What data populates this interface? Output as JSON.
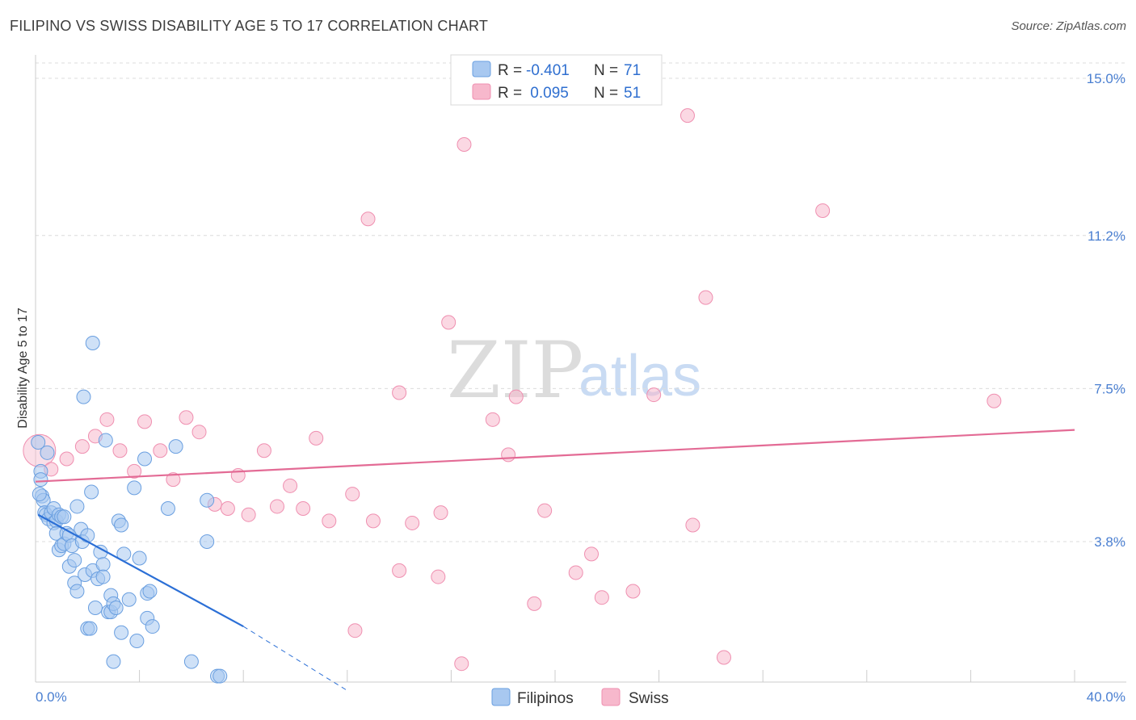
{
  "title": "FILIPINO VS SWISS DISABILITY AGE 5 TO 17 CORRELATION CHART",
  "source": "Source: ZipAtlas.com",
  "chart_data": {
    "type": "scatter",
    "title": "FILIPINO VS SWISS DISABILITY AGE 5 TO 17 CORRELATION CHART",
    "xlabel": "",
    "ylabel": "Disability Age 5 to 17",
    "xlim": [
      0,
      40
    ],
    "ylim": [
      0,
      15.5
    ],
    "x_tick_labels": [
      "0.0%",
      "40.0%"
    ],
    "y_ticks": [
      {
        "value": 15.0,
        "label": "15.0%"
      },
      {
        "value": 11.2,
        "label": "11.2%"
      },
      {
        "value": 7.5,
        "label": "7.5%"
      },
      {
        "value": 3.8,
        "label": "3.8%"
      }
    ],
    "watermark": {
      "zip": "ZIP",
      "atlas": "atlas"
    },
    "legend": [
      {
        "series": "Filipinos",
        "r_label": "R = ",
        "r_value": "-0.401",
        "n_label": "N = ",
        "n_value": "71",
        "color": "#a8c8f0"
      },
      {
        "series": "Swiss",
        "r_label": "R = ",
        "r_value": " 0.095",
        "n_label": "N = ",
        "n_value": "51",
        "color": "#f7b8cc"
      }
    ],
    "series": [
      {
        "name": "Filipinos",
        "color": "#a8c8f0",
        "stroke": "#6a9fe0",
        "trend": {
          "x0": 0.1,
          "y0": 4.45,
          "x1": 8.0,
          "y1": 1.75,
          "dash_x1": 12.0,
          "dash_y1": 0.2,
          "color": "#2b6fd6"
        },
        "points": [
          [
            0.1,
            6.2
          ],
          [
            0.2,
            5.5
          ],
          [
            0.2,
            5.3
          ],
          [
            0.25,
            4.9
          ],
          [
            0.3,
            4.8
          ],
          [
            0.35,
            4.5
          ],
          [
            0.4,
            4.45
          ],
          [
            0.5,
            4.35
          ],
          [
            0.6,
            4.5
          ],
          [
            0.7,
            4.6
          ],
          [
            0.7,
            4.25
          ],
          [
            0.8,
            4.3
          ],
          [
            0.8,
            4.0
          ],
          [
            0.9,
            3.6
          ],
          [
            0.9,
            4.45
          ],
          [
            1.0,
            4.4
          ],
          [
            1.0,
            3.7
          ],
          [
            1.1,
            3.75
          ],
          [
            1.1,
            4.4
          ],
          [
            1.2,
            4.0
          ],
          [
            1.3,
            3.95
          ],
          [
            1.3,
            3.2
          ],
          [
            1.4,
            3.7
          ],
          [
            1.5,
            3.35
          ],
          [
            1.5,
            2.8
          ],
          [
            1.6,
            2.6
          ],
          [
            1.6,
            4.65
          ],
          [
            1.75,
            4.1
          ],
          [
            1.8,
            3.8
          ],
          [
            1.9,
            3.0
          ],
          [
            2.0,
            1.7
          ],
          [
            2.0,
            3.95
          ],
          [
            2.1,
            1.7
          ],
          [
            2.15,
            5.0
          ],
          [
            2.2,
            3.1
          ],
          [
            2.3,
            2.2
          ],
          [
            2.4,
            2.9
          ],
          [
            2.5,
            3.55
          ],
          [
            2.6,
            3.25
          ],
          [
            2.6,
            2.95
          ],
          [
            2.8,
            2.1
          ],
          [
            2.9,
            2.1
          ],
          [
            2.9,
            2.5
          ],
          [
            3.0,
            0.9
          ],
          [
            3.0,
            2.3
          ],
          [
            3.1,
            2.2
          ],
          [
            3.2,
            4.3
          ],
          [
            3.3,
            4.2
          ],
          [
            3.3,
            1.6
          ],
          [
            3.4,
            3.5
          ],
          [
            3.6,
            2.4
          ],
          [
            3.8,
            5.1
          ],
          [
            3.9,
            1.4
          ],
          [
            4.0,
            3.4
          ],
          [
            4.2,
            5.8
          ],
          [
            4.3,
            1.95
          ],
          [
            4.3,
            2.55
          ],
          [
            4.4,
            2.6
          ],
          [
            4.5,
            1.75
          ],
          [
            5.1,
            4.6
          ],
          [
            5.4,
            6.1
          ],
          [
            6.0,
            0.9
          ],
          [
            6.6,
            4.8
          ],
          [
            6.6,
            3.8
          ],
          [
            7.0,
            0.55
          ],
          [
            7.1,
            0.55
          ],
          [
            2.7,
            6.25
          ],
          [
            1.85,
            7.3
          ],
          [
            2.2,
            8.6
          ],
          [
            0.15,
            4.95
          ],
          [
            0.45,
            5.95
          ]
        ]
      },
      {
        "name": "Swiss",
        "color": "#f7b8cc",
        "stroke": "#ef8fb0",
        "trend": {
          "x0": 0.0,
          "y0": 5.25,
          "x1": 40.0,
          "y1": 6.5,
          "color": "#e36b95"
        },
        "points": [
          [
            0.15,
            6.0
          ],
          [
            0.6,
            5.55
          ],
          [
            1.2,
            5.8
          ],
          [
            1.8,
            6.1
          ],
          [
            2.3,
            6.35
          ],
          [
            2.75,
            6.75
          ],
          [
            3.25,
            6.0
          ],
          [
            3.8,
            5.5
          ],
          [
            4.2,
            6.7
          ],
          [
            4.8,
            6.0
          ],
          [
            5.3,
            5.3
          ],
          [
            5.8,
            6.8
          ],
          [
            6.3,
            6.45
          ],
          [
            6.9,
            4.7
          ],
          [
            7.4,
            4.6
          ],
          [
            7.8,
            5.4
          ],
          [
            8.2,
            4.45
          ],
          [
            8.8,
            6.0
          ],
          [
            9.3,
            4.65
          ],
          [
            9.8,
            5.15
          ],
          [
            10.3,
            4.6
          ],
          [
            10.8,
            6.3
          ],
          [
            11.3,
            4.3
          ],
          [
            12.2,
            4.95
          ],
          [
            12.3,
            1.65
          ],
          [
            12.8,
            11.6
          ],
          [
            13.0,
            4.3
          ],
          [
            14.0,
            7.4
          ],
          [
            14.0,
            3.1
          ],
          [
            14.5,
            4.25
          ],
          [
            15.5,
            2.95
          ],
          [
            15.6,
            4.5
          ],
          [
            15.9,
            9.1
          ],
          [
            16.4,
            0.85
          ],
          [
            16.5,
            13.4
          ],
          [
            17.6,
            6.75
          ],
          [
            18.2,
            5.9
          ],
          [
            18.5,
            7.3
          ],
          [
            19.2,
            2.3
          ],
          [
            19.6,
            4.55
          ],
          [
            20.8,
            3.05
          ],
          [
            21.4,
            3.5
          ],
          [
            21.8,
            2.45
          ],
          [
            23.0,
            2.6
          ],
          [
            23.8,
            7.35
          ],
          [
            25.1,
            14.1
          ],
          [
            25.3,
            4.2
          ],
          [
            25.8,
            9.7
          ],
          [
            26.5,
            1.0
          ],
          [
            30.3,
            11.8
          ],
          [
            36.9,
            7.2
          ]
        ]
      }
    ]
  }
}
